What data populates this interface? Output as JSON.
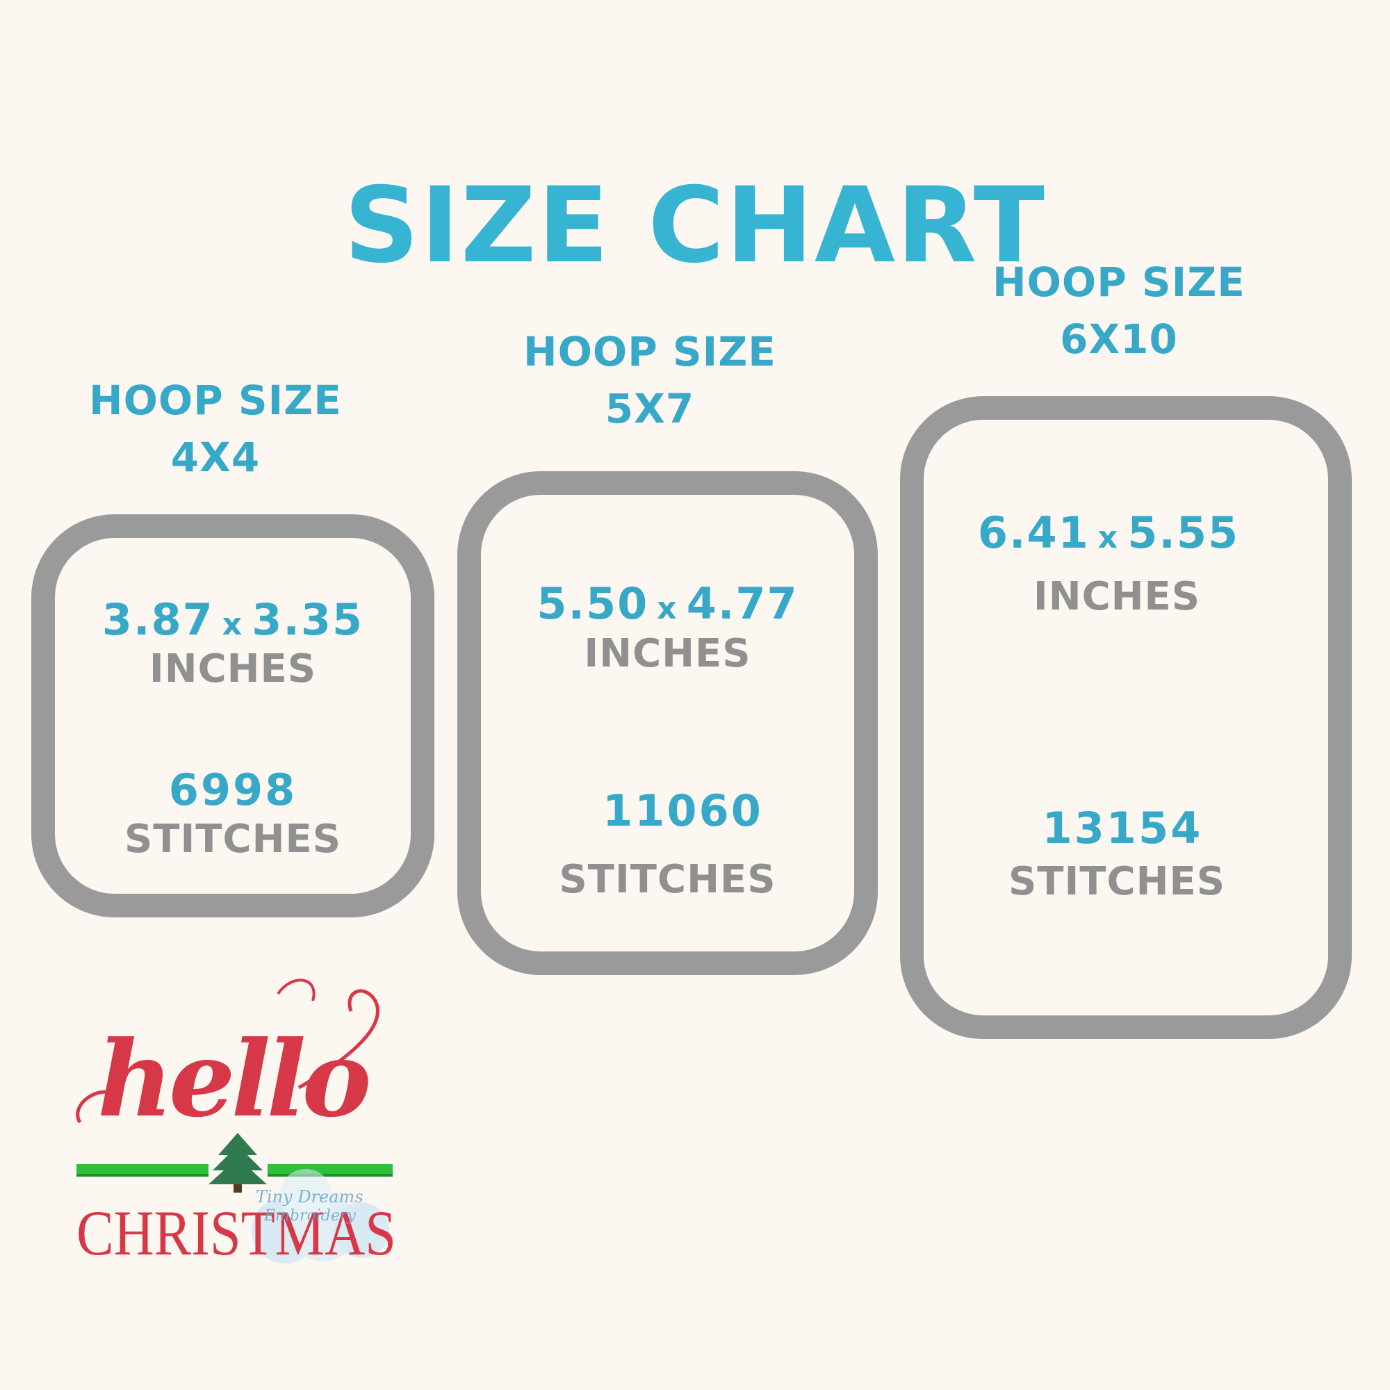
{
  "title": "SIZE CHART",
  "hoops": [
    {
      "label": "HOOP SIZE",
      "size": "4X4",
      "width": "3.87",
      "height": "3.35",
      "unit": "INCHES",
      "stitches": "6998",
      "stitch_label": "STITCHES"
    },
    {
      "label": "HOOP SIZE",
      "size": "5X7",
      "width": "5.50",
      "height": "4.77",
      "unit": "INCHES",
      "stitches": "11060",
      "stitch_label": "STITCHES"
    },
    {
      "label": "HOOP SIZE",
      "size": "6X10",
      "width": "6.41",
      "height": "5.55",
      "unit": "INCHES",
      "stitches": "13154",
      "stitch_label": "STITCHES"
    }
  ],
  "dim_separator": "x",
  "logo": {
    "script_word": "hello",
    "word": "CHRISTMAS",
    "watermark_line1": "Tiny Dreams",
    "watermark_line2": "Embroidery"
  },
  "colors": {
    "background": "#fdf7f2",
    "accent": "#37b4d1",
    "frame": "#9a9a9a",
    "label_gray": "#909090",
    "red": "#d63848",
    "green": "#2fbf3a",
    "tree": "#2f7a4e"
  }
}
